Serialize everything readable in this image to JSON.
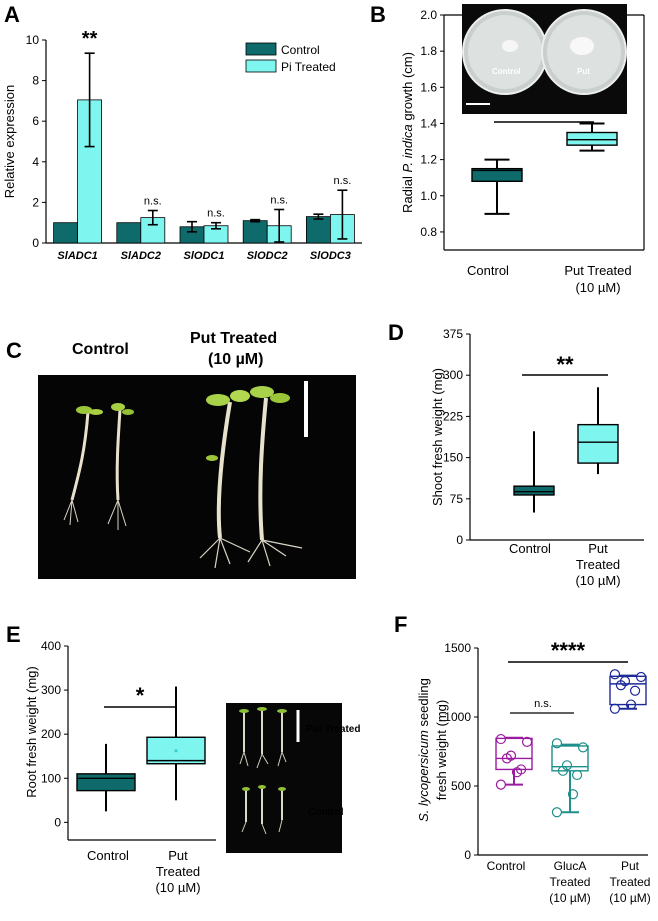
{
  "colors": {
    "teal": "#0f6b6b",
    "cyan": "#7ff5f0",
    "purple": "#9a1aa0",
    "green_teal": "#1f8f8a",
    "navy": "#1d2a9a"
  },
  "chart_data": [
    {
      "panel": "A",
      "type": "bar",
      "categories": [
        "SlADC1",
        "SlADC2",
        "SlODC1",
        "SlODC2",
        "SlODC3"
      ],
      "series": [
        {
          "name": "Control",
          "values": [
            1.0,
            1.0,
            0.8,
            1.1,
            1.3
          ],
          "errors": [
            0.0,
            0.0,
            0.25,
            0.05,
            0.12
          ]
        },
        {
          "name": "Pi Treated",
          "values": [
            7.05,
            1.25,
            0.85,
            0.85,
            1.4
          ],
          "errors": [
            2.3,
            0.35,
            0.15,
            0.8,
            1.2
          ]
        }
      ],
      "significance": [
        "**",
        "n.s.",
        "n.s.",
        "n.s.",
        "n.s."
      ],
      "ylabel": "Relative expression",
      "ylim": [
        0,
        10
      ],
      "yticks": [
        0,
        2,
        4,
        6,
        8,
        10
      ],
      "legend": "top-right"
    },
    {
      "panel": "B",
      "type": "box",
      "categories": [
        "Control",
        "Put Treated\n(10 µM)"
      ],
      "boxes": [
        {
          "min": 0.9,
          "q1": 1.08,
          "median": 1.14,
          "q3": 1.15,
          "max": 1.2
        },
        {
          "min": 1.25,
          "q1": 1.28,
          "median": 1.31,
          "q3": 1.35,
          "max": 1.4
        }
      ],
      "ylabel_parts": [
        "Radial ",
        "P. indica",
        " growth (cm)"
      ],
      "ylim": [
        0.7,
        2.0
      ],
      "yticks": [
        "0.8",
        "1.0",
        "1.2",
        "1.4",
        "1.6",
        "1.8",
        "2.0"
      ],
      "yticks_num": [
        0.8,
        1.0,
        1.2,
        1.4,
        1.6,
        1.8,
        2.0
      ],
      "significance": "****",
      "inset_labels": [
        "Control",
        "Put"
      ]
    },
    {
      "panel": "D",
      "type": "box",
      "categories": [
        "Control",
        "Put\nTreated\n(10 µM)"
      ],
      "boxes": [
        {
          "min": 50,
          "q1": 82,
          "median": 88,
          "q3": 98,
          "max": 198
        },
        {
          "min": 120,
          "q1": 140,
          "median": 178,
          "q3": 210,
          "max": 278
        }
      ],
      "ylabel": "Shoot fresh weight (mg)",
      "ylim": [
        0,
        375
      ],
      "yticks": [
        0,
        75,
        150,
        225,
        300,
        375
      ],
      "significance": "**"
    },
    {
      "panel": "E",
      "type": "box",
      "categories": [
        "Control",
        "Put\nTreated\n(10 µM)"
      ],
      "boxes": [
        {
          "min": 25,
          "q1": 72,
          "median": 100,
          "q3": 110,
          "max": 178
        },
        {
          "min": 50,
          "q1": 133,
          "median": 140,
          "q3": 193,
          "max": 308,
          "mean": 162
        }
      ],
      "ylabel": "Root fresh weight (mg)",
      "ylim": [
        -40,
        400
      ],
      "yticks": [
        0,
        100,
        200,
        300,
        400
      ],
      "significance": "*",
      "photo_labels": [
        "Put Treated",
        "Control"
      ]
    },
    {
      "panel": "F",
      "type": "box",
      "categories": [
        "Control",
        "GlucA\nTreated\n(10 µM)",
        "Put\nTreated\n(10 µM)"
      ],
      "boxes": [
        {
          "min": 510,
          "q1": 620,
          "median": 700,
          "q3": 845,
          "max": 850,
          "points": [
            510,
            600,
            620,
            700,
            720,
            820,
            840
          ]
        },
        {
          "min": 310,
          "q1": 610,
          "median": 640,
          "q3": 790,
          "max": 800,
          "points": [
            310,
            440,
            580,
            610,
            650,
            780,
            810
          ]
        },
        {
          "min": 1060,
          "q1": 1090,
          "median": 1240,
          "q3": 1295,
          "max": 1300,
          "points": [
            1060,
            1090,
            1190,
            1230,
            1260,
            1290,
            1310
          ]
        }
      ],
      "ylabel_line1_parts": [
        "S. lycopersicum",
        " seedling"
      ],
      "ylabel_line2": "fresh weight (mg)",
      "ylim": [
        0,
        1500
      ],
      "yticks": [
        0,
        500,
        1000,
        1500
      ],
      "significance": [
        "n.s.",
        "****"
      ]
    }
  ],
  "panel_letters": [
    "A",
    "B",
    "C",
    "D",
    "E",
    "F"
  ],
  "photo_c": {
    "label_left": "Control",
    "label_right_1": "Put Treated",
    "label_right_2": "(10 µM)"
  }
}
